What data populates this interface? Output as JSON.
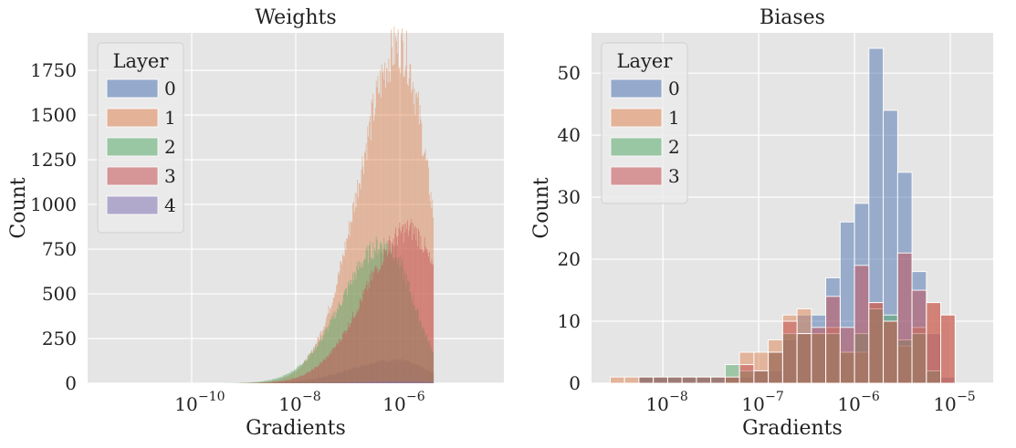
{
  "colors": {
    "background": "#e5e5e5",
    "grid": "#ffffff",
    "series": [
      "#4c72b0",
      "#dd8452",
      "#55a868",
      "#c44e52",
      "#8172b3"
    ]
  },
  "chart_data": [
    {
      "type": "bar",
      "title": "Weights",
      "xlabel": "Gradients",
      "ylabel": "Count",
      "xscale": "log",
      "xlim": [
        1e-12,
        0.0001
      ],
      "ylim": [
        0,
        1960
      ],
      "xticks": [
        1e-10,
        1e-08,
        1e-06
      ],
      "xtick_labels": [
        "10",
        "10",
        "10"
      ],
      "xtick_exponents": [
        "−10",
        "−8",
        "−6"
      ],
      "yticks": [
        0,
        250,
        500,
        750,
        1000,
        1250,
        1500,
        1750
      ],
      "ytick_labels": [
        "0",
        "250",
        "500",
        "750",
        "1000",
        "1250",
        "1500",
        "1750"
      ],
      "grid": true,
      "legend": {
        "title": "Layer",
        "placement": "top-left",
        "entries": [
          "0",
          "1",
          "2",
          "3",
          "4"
        ]
      },
      "series": [
        {
          "name": "0",
          "peak_log10_x": -6.1,
          "peak_count": 130,
          "sigma_left": 0.85,
          "sigma_right": 0.6,
          "range_log10_x": [
            -8.5,
            -4.7
          ]
        },
        {
          "name": "1",
          "peak_log10_x": -6.0,
          "peak_count": 1880,
          "sigma_left": 0.78,
          "sigma_right": 0.55,
          "range_log10_x": [
            -9.7,
            -4.5
          ]
        },
        {
          "name": "2",
          "peak_log10_x": -6.3,
          "peak_count": 780,
          "sigma_left": 0.8,
          "sigma_right": 0.55,
          "range_log10_x": [
            -9.7,
            -4.5
          ]
        },
        {
          "name": "3",
          "peak_log10_x": -5.8,
          "peak_count": 860,
          "sigma_left": 0.85,
          "sigma_right": 0.55,
          "range_log10_x": [
            -9.7,
            -4.5
          ]
        },
        {
          "name": "4",
          "peak_log10_x": -6.0,
          "peak_count": 10,
          "sigma_left": 0.8,
          "sigma_right": 0.6,
          "range_log10_x": [
            -9.0,
            -4.8
          ]
        }
      ]
    },
    {
      "type": "bar",
      "title": "Biases",
      "xlabel": "Gradients",
      "ylabel": "Count",
      "xscale": "log",
      "xlim": [
        1.8e-09,
        2.8e-05
      ],
      "ylim": [
        0,
        56.5
      ],
      "xticks": [
        1e-08,
        1e-07,
        1e-06,
        1e-05
      ],
      "xtick_labels": [
        "10",
        "10",
        "10",
        "10"
      ],
      "xtick_exponents": [
        "−8",
        "−7",
        "−6",
        "−5"
      ],
      "yticks": [
        0,
        10,
        20,
        30,
        40,
        50
      ],
      "ytick_labels": [
        "0",
        "10",
        "20",
        "30",
        "40",
        "50"
      ],
      "grid": true,
      "legend": {
        "title": "Layer",
        "placement": "top-left",
        "entries": [
          "0",
          "1",
          "2",
          "3"
        ]
      },
      "bin_edges_log10_x": [
        -8.55,
        -8.4,
        -8.25,
        -8.1,
        -7.95,
        -7.8,
        -7.65,
        -7.5,
        -7.35,
        -7.2,
        -7.05,
        -6.9,
        -6.75,
        -6.6,
        -6.45,
        -6.3,
        -6.15,
        -6.0,
        -5.85,
        -5.7,
        -5.55,
        -5.4,
        -5.25,
        -5.1,
        -4.95,
        -4.8
      ],
      "series": [
        {
          "name": "0",
          "values": [
            0,
            0,
            1,
            1,
            1,
            1,
            1,
            1,
            1,
            1,
            2,
            2,
            7,
            11,
            11,
            17,
            26,
            29,
            54,
            44,
            34,
            18,
            8,
            1,
            0
          ]
        },
        {
          "name": "1",
          "values": [
            1,
            1,
            0,
            0,
            0,
            0,
            0,
            0,
            1,
            5,
            5,
            7,
            11,
            12,
            8,
            9,
            5,
            5,
            13,
            10,
            6,
            9,
            13,
            11,
            0
          ]
        },
        {
          "name": "2",
          "values": [
            0,
            0,
            1,
            1,
            1,
            1,
            1,
            1,
            3,
            2,
            2,
            5,
            8,
            8,
            8,
            8,
            5,
            8,
            12,
            11,
            7,
            8,
            2,
            0,
            0
          ]
        },
        {
          "name": "3",
          "values": [
            0,
            0,
            1,
            1,
            1,
            1,
            1,
            1,
            1,
            3,
            2,
            5,
            10,
            8,
            9,
            14,
            9,
            19,
            13,
            10,
            21,
            15,
            13,
            11,
            0
          ]
        }
      ]
    }
  ]
}
